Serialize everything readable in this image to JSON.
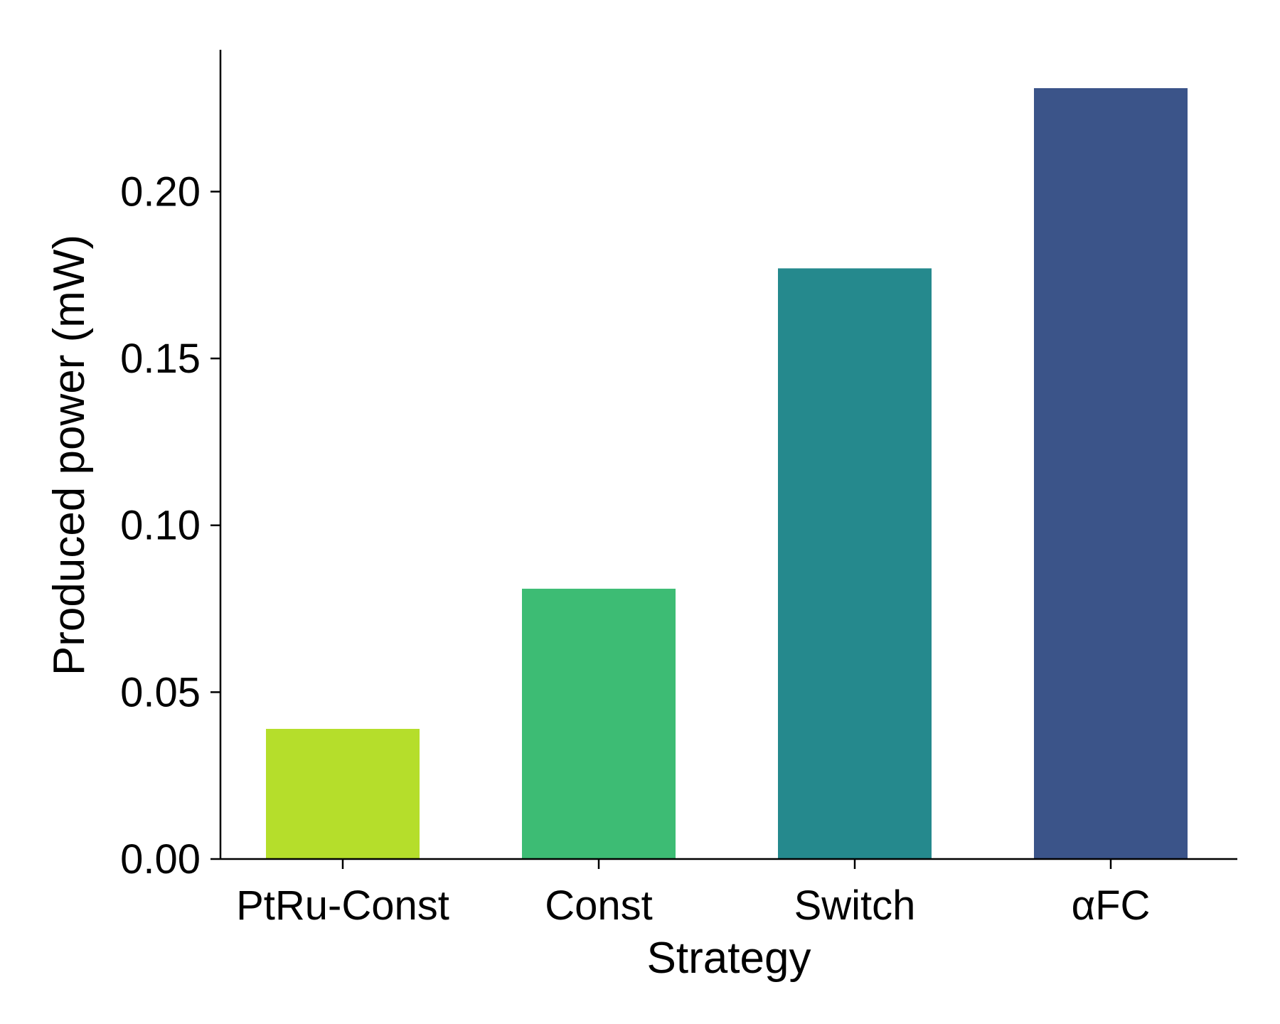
{
  "chart_data": {
    "type": "bar",
    "title": "",
    "xlabel": "Strategy",
    "ylabel": "Produced power (mW)",
    "categories": [
      "PtRu-Const",
      "Const",
      "Switch",
      "αFC"
    ],
    "values": [
      0.039,
      0.081,
      0.177,
      0.231
    ],
    "colors": [
      "#b5de2b",
      "#3dbc74",
      "#25898d",
      "#3b5489"
    ],
    "ylim": [
      0,
      0.2425
    ],
    "yticks": [
      0.0,
      0.05,
      0.1,
      0.15,
      0.2
    ],
    "ytick_labels": [
      "0.00",
      "0.05",
      "0.10",
      "0.15",
      "0.20"
    ],
    "grid": false,
    "legend": "none"
  }
}
